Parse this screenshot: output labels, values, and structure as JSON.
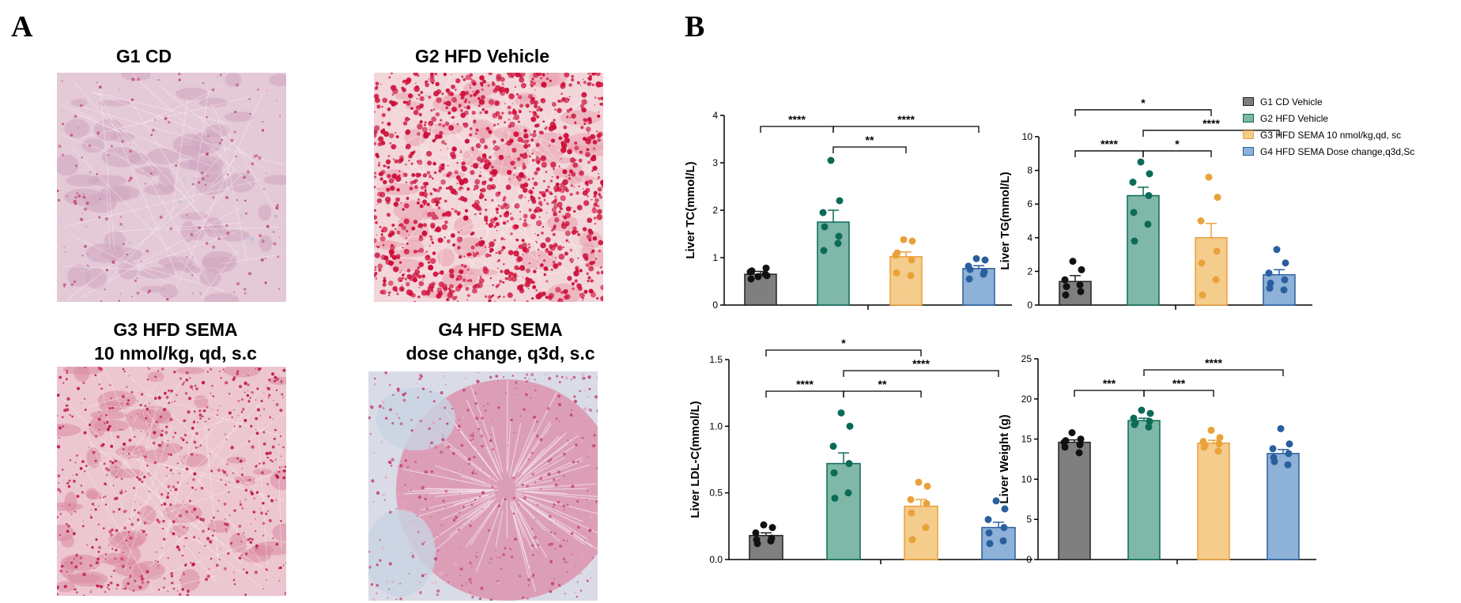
{
  "panels": {
    "a_label": "A",
    "b_label": "B"
  },
  "histology": [
    {
      "title_line1": "G1 CD",
      "title_line2": "",
      "stain": "light"
    },
    {
      "title_line1": "G2 HFD Vehicle",
      "title_line2": "",
      "stain": "heavy"
    },
    {
      "title_line1": "G3 HFD SEMA",
      "title_line2": "10 nmol/kg, qd, s.c",
      "stain": "medium"
    },
    {
      "title_line1": "G4 HFD SEMA",
      "title_line2": "dose change, q3d, s.c",
      "stain": "lobular"
    }
  ],
  "legend": [
    {
      "label": "G1 CD Vehicle",
      "fill": "#7f7f7f",
      "stroke": "#222222"
    },
    {
      "label": "G2 HFD Vehicle",
      "fill": "#7fb8a8",
      "stroke": "#0b6b57"
    },
    {
      "label": "G3 HFD SEMA 10 nmol/kg,qd,  sc",
      "fill": "#f4cc8c",
      "stroke": "#e9a23a"
    },
    {
      "label": "G4 HFD SEMA Dose change,q3d,Sc",
      "fill": "#8eb1d8",
      "stroke": "#2a5f9e"
    }
  ],
  "group_colors": {
    "bar_fill": [
      "#7f7f7f",
      "#7fb8a8",
      "#f4cc8c",
      "#8eb1d8"
    ],
    "dot": [
      "#111111",
      "#0b6b57",
      "#e9a23a",
      "#2a5f9e"
    ]
  },
  "chart_data": [
    {
      "type": "bar",
      "ylabel": "Liver TC(mmol/L)",
      "ylim": [
        0,
        4
      ],
      "yticks": [
        "0",
        "1",
        "2",
        "3",
        "4"
      ],
      "categories": [
        "G1 CD Vehicle",
        "G2 HFD Vehicle",
        "G3 HFD SEMA 10 nmol/kg,qd,  sc",
        "G4 HFD SEMA Dose change,q3d,Sc"
      ],
      "means": [
        0.65,
        1.75,
        1.02,
        0.77
      ],
      "sem": [
        0.06,
        0.25,
        0.1,
        0.06
      ],
      "points": [
        [
          0.6,
          0.62,
          0.7,
          0.78,
          0.55,
          0.65,
          0.72
        ],
        [
          3.05,
          2.2,
          1.95,
          1.45,
          1.15,
          1.3,
          1.65
        ],
        [
          1.38,
          1.35,
          1.05,
          0.95,
          0.68,
          0.62,
          1.1
        ],
        [
          0.98,
          0.95,
          0.82,
          0.7,
          0.55,
          0.65,
          0.75
        ]
      ],
      "significance": [
        {
          "from": 0,
          "to": 1,
          "label": "****",
          "level": 1
        },
        {
          "from": 1,
          "to": 3,
          "label": "****",
          "level": 1
        },
        {
          "from": 1,
          "to": 2,
          "label": "**",
          "level": 0
        }
      ]
    },
    {
      "type": "bar",
      "ylabel": "Liver TG(mmol/L)",
      "ylim": [
        0,
        10
      ],
      "yticks": [
        "0",
        "2",
        "4",
        "6",
        "8",
        "10"
      ],
      "categories": [
        "G1 CD Vehicle",
        "G2 HFD Vehicle",
        "G3 HFD SEMA 10 nmol/kg,qd,  sc",
        "G4 HFD SEMA Dose change,q3d,Sc"
      ],
      "means": [
        1.4,
        6.5,
        4.0,
        1.8
      ],
      "sem": [
        0.35,
        0.5,
        0.85,
        0.3
      ],
      "points": [
        [
          2.6,
          2.1,
          1.5,
          0.8,
          0.6,
          1.2,
          1.1
        ],
        [
          8.5,
          7.8,
          7.3,
          6.5,
          5.5,
          4.8,
          3.8
        ],
        [
          7.6,
          6.4,
          5.0,
          3.2,
          2.5,
          1.5,
          0.6
        ],
        [
          3.3,
          2.5,
          1.9,
          1.5,
          1.0,
          0.9,
          1.3
        ]
      ],
      "significance": [
        {
          "from": 0,
          "to": 2,
          "label": "*",
          "level": 2
        },
        {
          "from": 0,
          "to": 1,
          "label": "****",
          "level": 0
        },
        {
          "from": 1,
          "to": 2,
          "label": "*",
          "level": 0
        },
        {
          "from": 1,
          "to": 3,
          "label": "****",
          "level": 1
        }
      ]
    },
    {
      "type": "bar",
      "ylabel": "Liver LDL-C(mmol/L)",
      "ylim": [
        0,
        1.5
      ],
      "yticks": [
        "0.0",
        "0.5",
        "1.0",
        "1.5"
      ],
      "categories": [
        "G1 CD Vehicle",
        "G2 HFD Vehicle",
        "G3 HFD SEMA 10 nmol/kg,qd,  sc",
        "G4 HFD SEMA Dose change,q3d,Sc"
      ],
      "means": [
        0.18,
        0.72,
        0.4,
        0.24
      ],
      "sem": [
        0.02,
        0.08,
        0.05,
        0.04
      ],
      "points": [
        [
          0.26,
          0.24,
          0.2,
          0.16,
          0.15,
          0.14,
          0.12
        ],
        [
          1.1,
          1.0,
          0.85,
          0.72,
          0.65,
          0.5,
          0.46
        ],
        [
          0.58,
          0.55,
          0.45,
          0.42,
          0.35,
          0.24,
          0.15
        ],
        [
          0.44,
          0.38,
          0.3,
          0.24,
          0.2,
          0.14,
          0.12
        ]
      ],
      "significance": [
        {
          "from": 0,
          "to": 2,
          "label": "*",
          "level": 2
        },
        {
          "from": 1,
          "to": 3,
          "label": "****",
          "level": 1
        },
        {
          "from": 0,
          "to": 1,
          "label": "****",
          "level": 0
        },
        {
          "from": 1,
          "to": 2,
          "label": "**",
          "level": 0
        }
      ]
    },
    {
      "type": "bar",
      "ylabel": "Liver Weight (g)",
      "ylim": [
        0,
        25
      ],
      "yticks": [
        "0",
        "5",
        "10",
        "15",
        "20",
        "25"
      ],
      "categories": [
        "G1 CD Vehicle",
        "G2 HFD Vehicle",
        "G3 HFD SEMA 10 nmol/kg,qd,  sc",
        "G4 HFD SEMA Dose change,q3d,Sc"
      ],
      "means": [
        14.6,
        17.3,
        14.5,
        13.2
      ],
      "sem": [
        0.3,
        0.3,
        0.35,
        0.5
      ],
      "points": [
        [
          15.8,
          15.0,
          14.6,
          14.3,
          14.0,
          13.3,
          14.8
        ],
        [
          18.6,
          18.2,
          17.6,
          17.2,
          16.8,
          16.5,
          17.0
        ],
        [
          16.1,
          15.2,
          14.7,
          14.4,
          14.0,
          13.5,
          14.2
        ],
        [
          16.3,
          14.4,
          13.8,
          13.2,
          12.7,
          11.8,
          12.2
        ]
      ],
      "significance": [
        {
          "from": 0,
          "to": 1,
          "label": "***",
          "level": 0
        },
        {
          "from": 1,
          "to": 2,
          "label": "***",
          "level": 0
        },
        {
          "from": 1,
          "to": 3,
          "label": "****",
          "level": 1
        }
      ]
    }
  ]
}
